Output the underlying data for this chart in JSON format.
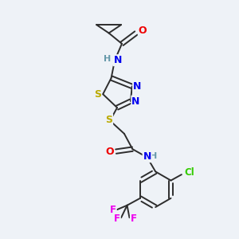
{
  "background_color": "#eef2f7",
  "bond_color": "#2d2d2d",
  "atom_colors": {
    "N": "#0000ee",
    "O": "#ee0000",
    "S": "#bbaa00",
    "Cl": "#33cc00",
    "F": "#ee00ee",
    "H": "#6699aa",
    "C": "#2d2d2d"
  },
  "figsize": [
    3.0,
    3.0
  ],
  "dpi": 100
}
